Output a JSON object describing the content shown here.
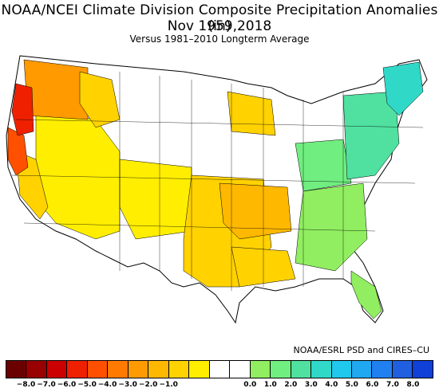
{
  "title": "NOAA/NCEI Climate Division Composite Precipitation Anomalies (in)",
  "subtitle": "Nov   1959,2018",
  "note": "Versus 1981–2010 Longterm Average",
  "credit": "NOAA/ESRL PSD and CIRES–CU",
  "legend": {
    "colors": [
      "#6b0000",
      "#990000",
      "#cc0000",
      "#ee2000",
      "#ff5000",
      "#ff7a00",
      "#ff9a00",
      "#ffb800",
      "#ffd200",
      "#ffee00",
      "#ffffff",
      "#ffffff",
      "#90ee60",
      "#70ee80",
      "#50e0a0",
      "#30d8c8",
      "#20c8ee",
      "#20a8f0",
      "#2080f0",
      "#2060e0",
      "#1040d8"
    ],
    "ticks": [
      "−8.0",
      "−7.0",
      "−6.0",
      "−5.0",
      "−4.0",
      "−3.0",
      "−2.0",
      "−1.0",
      "0.0",
      "1.0",
      "2.0",
      "3.0",
      "4.0",
      "5.0",
      "6.0",
      "7.0",
      "8.0"
    ]
  },
  "regions": [
    {
      "name": "pacific-northwest-coast",
      "color": "#ee2000"
    },
    {
      "name": "oregon-washington-interior",
      "color": "#ff9a00"
    },
    {
      "name": "northern-california-coast",
      "color": "#ff5000"
    },
    {
      "name": "california-central",
      "color": "#ffd200"
    },
    {
      "name": "great-basin",
      "color": "#ffee00"
    },
    {
      "name": "idaho-montana-west",
      "color": "#ffd200"
    },
    {
      "name": "four-corners",
      "color": "#ffee00"
    },
    {
      "name": "southern-plains",
      "color": "#ffd200"
    },
    {
      "name": "ozarks-central",
      "color": "#ffb800"
    },
    {
      "name": "upper-midwest",
      "color": "#ffd200"
    },
    {
      "name": "gulf-coast",
      "color": "#ffd200"
    },
    {
      "name": "mid-atlantic-southeast",
      "color": "#90ee60"
    },
    {
      "name": "ohio-valley",
      "color": "#70ee80"
    },
    {
      "name": "northeast",
      "color": "#50e0a0"
    },
    {
      "name": "new-england",
      "color": "#30d8c8"
    },
    {
      "name": "florida",
      "color": "#90ee60"
    }
  ]
}
